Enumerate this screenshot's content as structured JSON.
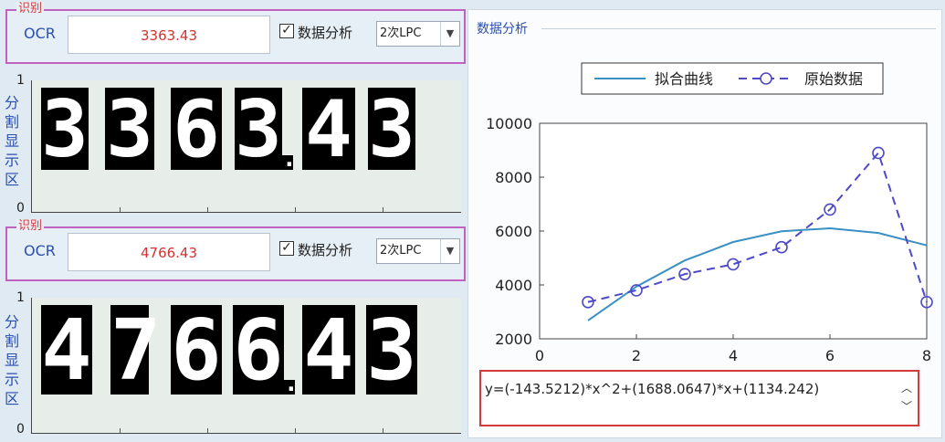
{
  "top": {
    "group_title": "识别",
    "ocr_label": "OCR",
    "ocr_value": "3363.43",
    "checkbox_label": "数据分析",
    "select_value": "2次LPC",
    "segment_label": "分割显示区",
    "y_tick_top": "1",
    "y_tick_bottom": "0",
    "digits": [
      "3",
      "3",
      "6",
      "3",
      ".",
      "4",
      "3"
    ]
  },
  "bottom": {
    "group_title": "识别",
    "ocr_label": "OCR",
    "ocr_value": "4766.43",
    "checkbox_label": "数据分析",
    "select_value": "2次LPC",
    "segment_label": "分割显示区",
    "y_tick_top": "1",
    "y_tick_bottom": "0",
    "digits": [
      "4",
      "7",
      "6",
      "6",
      ".",
      "4",
      "3"
    ]
  },
  "analysis": {
    "panel_title": "数据分析",
    "equation": "y=(-143.5212)*x^2+(1688.0647)*x+(1134.242)"
  },
  "chart_data": {
    "type": "line",
    "legend_position": "top",
    "xlim": [
      0,
      8
    ],
    "ylim": [
      2000,
      10000
    ],
    "x_ticks": [
      "0",
      "2",
      "4",
      "6",
      "8"
    ],
    "y_ticks": [
      "2000",
      "4000",
      "6000",
      "8000",
      "10000"
    ],
    "series": [
      {
        "name": "拟合曲线",
        "style": "solid",
        "color": "#3a8fc4",
        "x": [
          1,
          2,
          3,
          4,
          5,
          6,
          7,
          8
        ],
        "values": [
          2679,
          3937,
          4908,
          5593,
          5991,
          6103,
          5929,
          5468
        ]
      },
      {
        "name": "原始数据",
        "style": "dashed-circle",
        "color": "#4d49c8",
        "x": [
          1,
          2,
          3,
          4,
          5,
          6,
          7,
          8
        ],
        "values": [
          3363.43,
          3800,
          4400,
          4766.43,
          5400,
          6800,
          8900,
          3363.43
        ]
      }
    ],
    "title": "",
    "xlabel": "",
    "ylabel": ""
  },
  "colors": {
    "accent_red": "#d13232",
    "label_blue": "#2a4fb0",
    "group_border": "#c060c0"
  }
}
